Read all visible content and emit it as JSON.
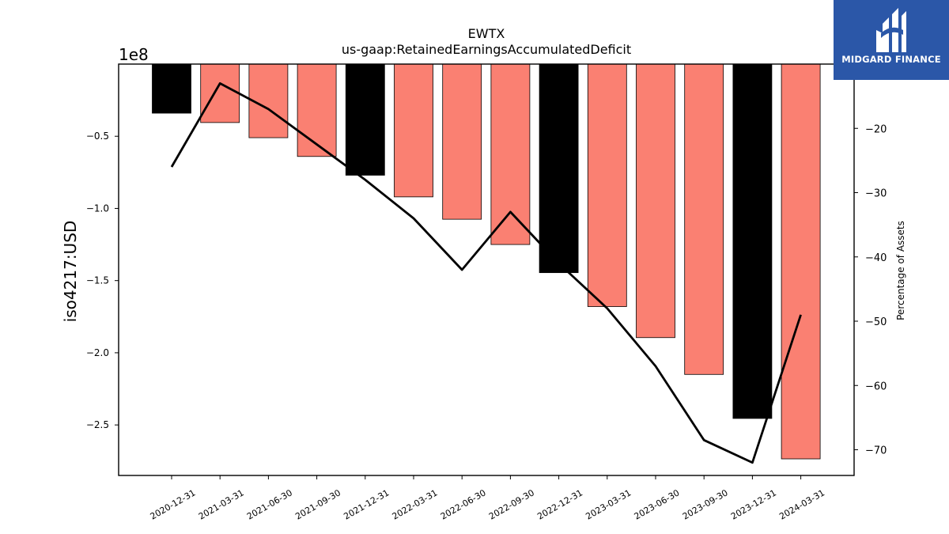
{
  "chart_data": {
    "type": "bar",
    "title": "EWTX",
    "subtitle": "us-gaap:RetainedEarningsAccumulatedDeficit",
    "ylabel": "iso4217:USD",
    "y_offset_label": "1e8",
    "y2label": "Percentage of Assets",
    "categories": [
      "2020-12-31",
      "2021-03-31",
      "2021-06-30",
      "2021-09-30",
      "2021-12-31",
      "2022-03-31",
      "2022-06-30",
      "2022-09-30",
      "2022-12-31",
      "2023-03-31",
      "2023-06-30",
      "2023-09-30",
      "2023-12-31",
      "2024-03-31"
    ],
    "series": [
      {
        "type": "bar",
        "values": [
          -34000000,
          -40500000,
          -51000000,
          -64000000,
          -77000000,
          -92000000,
          -107500000,
          -125000000,
          -144500000,
          -168000000,
          -189500000,
          -215000000,
          -245500000,
          -273500000
        ],
        "colors": [
          "#000000",
          "#fa8072",
          "#fa8072",
          "#fa8072",
          "#000000",
          "#fa8072",
          "#fa8072",
          "#fa8072",
          "#000000",
          "#fa8072",
          "#fa8072",
          "#fa8072",
          "#000000",
          "#fa8072"
        ]
      },
      {
        "type": "line",
        "axis": "right",
        "values": [
          -26,
          -13,
          -17,
          -22.5,
          -28,
          -34,
          -42,
          -33,
          -41,
          -48,
          -57,
          -68.5,
          -72,
          -49
        ]
      }
    ],
    "ylim": [
      -285000000,
      0
    ],
    "yticks": [
      -50000000,
      -100000000,
      -150000000,
      -200000000,
      -250000000
    ],
    "yticklabels": [
      "−0.5",
      "−1.0",
      "−1.5",
      "−2.0",
      "−2.5"
    ],
    "y2lim": [
      -74,
      -10
    ],
    "y2ticks": [
      -20,
      -30,
      -40,
      -50,
      -60,
      -70
    ],
    "y2ticklabels": [
      "−20",
      "−30",
      "−40",
      "−50",
      "−60",
      "−70"
    ],
    "grid": false,
    "legend": "none"
  },
  "logo": {
    "text": "MIDGARD FINANCE",
    "background": "#2b57a8"
  }
}
